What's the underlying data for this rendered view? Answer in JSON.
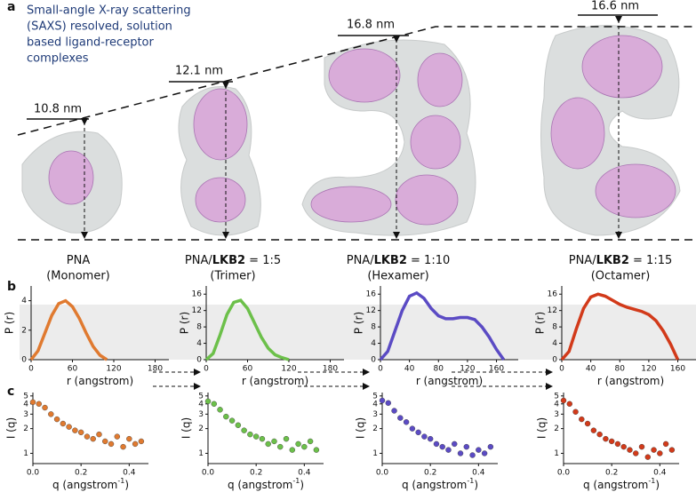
{
  "panel_labels": [
    "a",
    "b",
    "c"
  ],
  "description": [
    "Small-angle X-ray scattering",
    "(SAXS) resolved, solution",
    "based ligand-receptor",
    "complexes"
  ],
  "dimensions": [
    "10.8 nm",
    "12.1 nm",
    "16.8 nm",
    "16.6 nm"
  ],
  "complexes": [
    {
      "pre": "PNA",
      "state": "(Monomer)"
    },
    {
      "pre": "PNA/",
      "bold": "LKB2",
      "post": " = 1:5",
      "state": "(Trimer)"
    },
    {
      "pre": "PNA/",
      "bold": "LKB2",
      "post": " = 1:10",
      "state": "(Hexamer)"
    },
    {
      "pre": "PNA/",
      "bold": "LKB2",
      "post": " = 1:15",
      "state": "(Octamer)"
    }
  ],
  "chart_data": [
    {
      "type": "line",
      "ylabel": "P (r)",
      "xlabel": "r (angstrom)",
      "color": "#e07a30",
      "x": [
        0,
        10,
        20,
        30,
        40,
        50,
        60,
        70,
        80,
        90,
        100,
        110
      ],
      "values": [
        0,
        0.6,
        1.8,
        3.0,
        3.8,
        4.0,
        3.6,
        2.8,
        1.8,
        0.9,
        0.3,
        0
      ],
      "xlim": [
        0,
        200
      ],
      "xticks": [
        0,
        60,
        120,
        180
      ],
      "ylim": [
        0,
        5
      ],
      "yticks": [
        0,
        2,
        4
      ]
    },
    {
      "type": "line",
      "ylabel": "P (r)",
      "xlabel": "r (angstrom)",
      "color": "#6cc04a",
      "x": [
        0,
        10,
        20,
        30,
        40,
        50,
        60,
        70,
        80,
        90,
        100,
        110,
        120
      ],
      "values": [
        0,
        1.5,
        6,
        11,
        14,
        14.5,
        12.5,
        9,
        5.5,
        2.8,
        1.2,
        0.5,
        0
      ],
      "xlim": [
        0,
        200
      ],
      "xticks": [
        0,
        60,
        120,
        180
      ],
      "ylim": [
        0,
        18
      ],
      "yticks": [
        0,
        4,
        8,
        12,
        16
      ]
    },
    {
      "type": "line",
      "ylabel": "P (r)",
      "xlabel": "r (angstrom)",
      "color": "#5b4bc4",
      "x": [
        0,
        10,
        20,
        30,
        40,
        50,
        60,
        70,
        80,
        90,
        100,
        110,
        120,
        130,
        140,
        150,
        160,
        170
      ],
      "values": [
        0,
        2,
        7,
        12,
        15.5,
        16.3,
        15,
        12.5,
        10.7,
        10,
        10,
        10.3,
        10.3,
        9.8,
        8,
        5.5,
        2.5,
        0
      ],
      "xlim": [
        0,
        190
      ],
      "xticks": [
        0,
        40,
        80,
        120,
        160
      ],
      "ylim": [
        0,
        18
      ],
      "yticks": [
        0,
        4,
        8,
        12,
        16
      ]
    },
    {
      "type": "line",
      "ylabel": "P (r)",
      "xlabel": "r (angstrom)",
      "color": "#d23a1a",
      "x": [
        0,
        10,
        20,
        30,
        40,
        50,
        60,
        70,
        80,
        90,
        100,
        110,
        120,
        130,
        140,
        150,
        160
      ],
      "values": [
        0,
        2,
        7.5,
        12.5,
        15.3,
        16,
        15.5,
        14.5,
        13.5,
        12.8,
        12.3,
        11.8,
        11,
        9.5,
        7,
        3.8,
        0
      ],
      "xlim": [
        0,
        190
      ],
      "xticks": [
        0,
        40,
        80,
        120,
        160
      ],
      "ylim": [
        0,
        18
      ],
      "yticks": [
        0,
        4,
        8,
        12,
        16
      ]
    },
    {
      "type": "scatter",
      "ylabel": "I (q)",
      "xlabel": "q (angstrom",
      "xlabel_sup": "-1",
      "xlabel_end": ")",
      "color": "#e07a30",
      "log": true,
      "x": [
        0,
        0.025,
        0.05,
        0.075,
        0.1,
        0.125,
        0.15,
        0.175,
        0.2,
        0.225,
        0.25,
        0.275,
        0.3,
        0.325,
        0.35,
        0.375,
        0.4,
        0.425,
        0.45
      ],
      "values": [
        4.2,
        4.0,
        3.6,
        3.0,
        2.6,
        2.3,
        2.1,
        1.9,
        1.8,
        1.6,
        1.5,
        1.7,
        1.4,
        1.3,
        1.6,
        1.2,
        1.5,
        1.3,
        1.4
      ],
      "xlim": [
        0,
        0.48
      ],
      "xticks": [
        {
          "value": 0,
          "label": "0.0"
        },
        0.2,
        0.4
      ],
      "ylim": [
        0.75,
        5.5
      ],
      "yticks": [
        1,
        2,
        3,
        4,
        5
      ]
    },
    {
      "type": "scatter",
      "ylabel": "I (q)",
      "xlabel": "q (angstrom",
      "xlabel_sup": "-1",
      "xlabel_end": ")",
      "color": "#6cc04a",
      "log": true,
      "x": [
        0,
        0.025,
        0.05,
        0.075,
        0.1,
        0.125,
        0.15,
        0.175,
        0.2,
        0.225,
        0.25,
        0.275,
        0.3,
        0.325,
        0.35,
        0.375,
        0.4,
        0.425,
        0.45
      ],
      "values": [
        4.3,
        4.0,
        3.4,
        2.8,
        2.5,
        2.2,
        1.9,
        1.7,
        1.6,
        1.5,
        1.3,
        1.4,
        1.2,
        1.5,
        1.1,
        1.3,
        1.2,
        1.4,
        1.1
      ],
      "xlim": [
        0,
        0.48
      ],
      "xticks": [
        {
          "value": 0,
          "label": "0.0"
        },
        0.2,
        0.4
      ],
      "ylim": [
        0.75,
        5.5
      ],
      "yticks": [
        1,
        2,
        3,
        4,
        5
      ]
    },
    {
      "type": "scatter",
      "ylabel": "I (q)",
      "xlabel": "q (angstrom",
      "xlabel_sup": "-1",
      "xlabel_end": ")",
      "color": "#5b4bc4",
      "log": true,
      "x": [
        0,
        0.025,
        0.05,
        0.075,
        0.1,
        0.125,
        0.15,
        0.175,
        0.2,
        0.225,
        0.25,
        0.275,
        0.3,
        0.325,
        0.35,
        0.375,
        0.4,
        0.425,
        0.45
      ],
      "values": [
        4.4,
        4.1,
        3.3,
        2.7,
        2.4,
        2.0,
        1.8,
        1.6,
        1.5,
        1.3,
        1.2,
        1.1,
        1.3,
        1.0,
        1.2,
        0.95,
        1.1,
        1.0,
        1.2
      ],
      "xlim": [
        0,
        0.48
      ],
      "xticks": [
        {
          "value": 0,
          "label": "0.0"
        },
        0.2,
        0.4
      ],
      "ylim": [
        0.75,
        5.5
      ],
      "yticks": [
        1,
        2,
        3,
        4,
        5
      ]
    },
    {
      "type": "scatter",
      "ylabel": "I (q)",
      "xlabel": "q (angstrom",
      "xlabel_sup": "-1",
      "xlabel_end": ")",
      "color": "#d23a1a",
      "log": true,
      "x": [
        0,
        0.025,
        0.05,
        0.075,
        0.1,
        0.125,
        0.15,
        0.175,
        0.2,
        0.225,
        0.25,
        0.275,
        0.3,
        0.325,
        0.35,
        0.375,
        0.4,
        0.425,
        0.45
      ],
      "values": [
        4.4,
        4.0,
        3.2,
        2.6,
        2.3,
        1.9,
        1.7,
        1.5,
        1.4,
        1.3,
        1.2,
        1.1,
        1.0,
        1.2,
        0.9,
        1.1,
        1.0,
        1.3,
        1.1
      ],
      "xlim": [
        0,
        0.48
      ],
      "xticks": [
        {
          "value": 0,
          "label": "0.0"
        },
        0.2,
        0.4
      ],
      "ylim": [
        0.75,
        5.5
      ],
      "yticks": [
        1,
        2,
        3,
        4,
        5
      ]
    }
  ]
}
